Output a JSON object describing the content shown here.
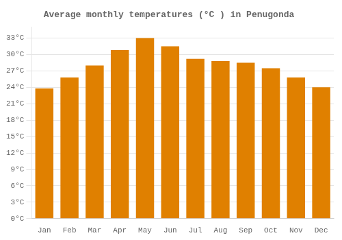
{
  "chart_data": {
    "type": "bar",
    "title": "Average monthly temperatures (°C ) in Penugonda",
    "categories": [
      "Jan",
      "Feb",
      "Mar",
      "Apr",
      "May",
      "Jun",
      "Jul",
      "Aug",
      "Sep",
      "Oct",
      "Nov",
      "Dec"
    ],
    "values": [
      23.8,
      25.8,
      28.0,
      30.8,
      33.0,
      31.5,
      29.2,
      28.8,
      28.5,
      27.5,
      25.8,
      24.0
    ],
    "color": "#E08000",
    "ylim": [
      0,
      35
    ],
    "yticks": [
      {
        "value": 0,
        "label": "0°C"
      },
      {
        "value": 3,
        "label": "3°C"
      },
      {
        "value": 6,
        "label": "6°C"
      },
      {
        "value": 9,
        "label": "9°C"
      },
      {
        "value": 12,
        "label": "12°C"
      },
      {
        "value": 15,
        "label": "15°C"
      },
      {
        "value": 18,
        "label": "18°C"
      },
      {
        "value": 21,
        "label": "21°C"
      },
      {
        "value": 24,
        "label": "24°C"
      },
      {
        "value": 27,
        "label": "27°C"
      },
      {
        "value": 30,
        "label": "30°C"
      },
      {
        "value": 33,
        "label": "33°C"
      }
    ],
    "grid": true
  }
}
